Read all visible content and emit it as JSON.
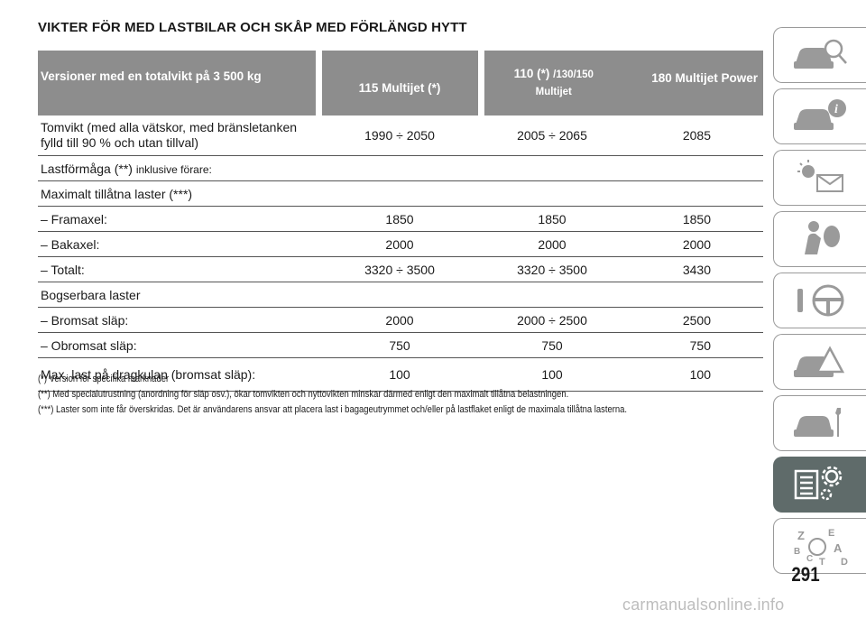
{
  "title": "VIKTER FÖR MED LASTBILAR OCH SKÅP MED FÖRLÄNGD HYTT",
  "table": {
    "header": {
      "col0": "Versioner med en totalvikt på 3 500 kg",
      "col1": "115 Multijet (*)",
      "col2_main": "110 (*) ",
      "col2_small": "/130/150",
      "col2_line2": "Multijet",
      "col3": "180 Multijet Power"
    },
    "rows": [
      {
        "label": "Tomvikt (med alla vätskor, med bränsletanken",
        "label2": "fylld till 90 % och utan tillval)",
        "v1": "1990 ÷ 2050",
        "v2": "2005 ÷ 2065",
        "v3": "2085"
      },
      {
        "label": "Lastförmåga (**) ",
        "label_small": "inklusive förare:"
      },
      {
        "label": "Maximalt tillåtna laster (***)"
      },
      {
        "label": "– Framaxel:",
        "v1": "1850",
        "v2": "1850",
        "v3": "1850"
      },
      {
        "label": "– Bakaxel:",
        "v1": "2000",
        "v2": "2000",
        "v3": "2000"
      },
      {
        "label": "– Totalt:",
        "v1": "3320 ÷ 3500",
        "v2": "3320 ÷ 3500",
        "v3": "3430"
      },
      {
        "label": "Bogserbara laster"
      },
      {
        "label": "– Bromsat släp:",
        "v1": "2000",
        "v2": "2000 ÷ 2500",
        "v3": "2500"
      },
      {
        "label": "– Obromsat släp:",
        "v1": "750",
        "v2": "750",
        "v3": "750"
      },
      {
        "label": "Max. last på dragkulan (bromsat släp):",
        "v1": "100",
        "v2": "100",
        "v3": "100"
      }
    ]
  },
  "footnotes": [
    "(*) Version för specifika marknader",
    "(**) Med specialutrustning (anordning för släp osv.), ökar tomvikten och nyttovikten minskar därmed enligt den maximalt tillåtna belastningen.",
    "(***) Laster som inte får överskridas. Det är användarens ansvar att placera last i bagageutrymmet och/eller på lastflaket enligt de maximala tillåtna lasterna."
  ],
  "sidebar": {
    "tabs": [
      {
        "icon": "car-search-icon",
        "active": false
      },
      {
        "icon": "car-info-icon",
        "active": false
      },
      {
        "icon": "warning-light-envelope-icon",
        "active": false
      },
      {
        "icon": "airbag-passenger-icon",
        "active": false
      },
      {
        "icon": "steering-wheel-icon",
        "active": false
      },
      {
        "icon": "car-breakdown-icon",
        "active": false
      },
      {
        "icon": "car-service-wrench-icon",
        "active": false
      },
      {
        "icon": "technical-data-gear-icon",
        "active": true
      },
      {
        "icon": "alphabetical-index-icon",
        "active": false
      }
    ],
    "active_color": "#5f6b6a"
  },
  "page_number": "291",
  "watermark": "carmanualsonline.info"
}
